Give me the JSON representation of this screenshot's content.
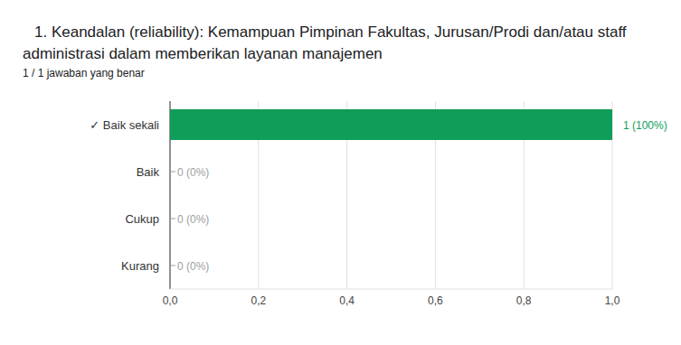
{
  "chart_data": {
    "type": "bar",
    "orientation": "horizontal",
    "title": "1. Keandalan (reliability):  Kemampuan Pimpinan Fakultas, Jurusan/Prodi dan/atau staff administrasi dalam memberikan layanan manajemen",
    "subtitle": "1 / 1 jawaban yang benar",
    "categories": [
      "✓ Baik sekali",
      "Baik",
      "Cukup",
      "Kurang"
    ],
    "values": [
      1,
      0,
      0,
      0
    ],
    "value_labels": [
      "1 (100%)",
      "0 (0%)",
      "0 (0%)",
      "0 (0%)"
    ],
    "data_labels": true,
    "color": "#109d59",
    "xlim": [
      0,
      1
    ],
    "xticks": [
      {
        "value": 0,
        "label": "0,0"
      },
      {
        "value": 0.2,
        "label": "0,2"
      },
      {
        "value": 0.4,
        "label": "0,4"
      },
      {
        "value": 0.6,
        "label": "0,6"
      },
      {
        "value": 0.8,
        "label": "0,8"
      },
      {
        "value": 1,
        "label": "1,0"
      }
    ],
    "grid": true
  }
}
